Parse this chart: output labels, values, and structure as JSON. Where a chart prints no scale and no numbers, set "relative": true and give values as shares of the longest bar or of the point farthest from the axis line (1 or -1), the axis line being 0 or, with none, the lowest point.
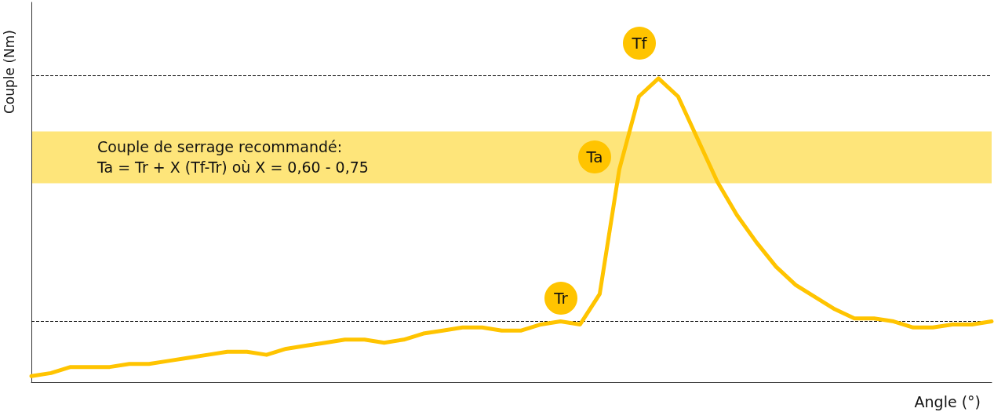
{
  "chart_data": {
    "type": "line",
    "relative": true,
    "xlabel": "Angle (°)",
    "ylabel": "Couple (Nm)",
    "categories": [
      null,
      null,
      null,
      null,
      null,
      null,
      null,
      null,
      null,
      null,
      null,
      null,
      null,
      null,
      null,
      null,
      null,
      null,
      null,
      null,
      null,
      null,
      null,
      null,
      null,
      null,
      null,
      null,
      null,
      null,
      null,
      null,
      null,
      null,
      null,
      null,
      null,
      null,
      null,
      null,
      null,
      null,
      null,
      null,
      null,
      null,
      null,
      null,
      null,
      null
    ],
    "series": [
      {
        "color": "#ffc400",
        "values": [
          0.02,
          0.03,
          0.05,
          0.05,
          0.05,
          0.06,
          0.06,
          0.07,
          0.08,
          0.09,
          0.1,
          0.1,
          0.09,
          0.11,
          0.12,
          0.13,
          0.14,
          0.14,
          0.13,
          0.14,
          0.16,
          0.17,
          0.18,
          0.18,
          0.17,
          0.17,
          0.19,
          0.2,
          0.19,
          0.29,
          0.7,
          0.94,
          1.0,
          0.94,
          0.8,
          0.66,
          0.55,
          0.46,
          0.38,
          0.32,
          0.28,
          0.24,
          0.21,
          0.21,
          0.2,
          0.18,
          0.18,
          0.19,
          0.19,
          0.2
        ]
      }
    ],
    "ref_lines": [
      {
        "axis": "y",
        "value": 0.2,
        "color": "#000000",
        "line_style": "dashed"
      },
      {
        "axis": "y",
        "value": 1.01,
        "color": "#000000",
        "line_style": "dashed"
      }
    ],
    "bands": [
      {
        "axis": "y",
        "from": 0.655,
        "to": 0.825,
        "color": "#fee57a",
        "label": "Couple de serrage recommandé:\nTa = Tr + X (Tf-Tr) où X = 0,60 - 0,75"
      }
    ],
    "annotations": [
      "Tr",
      "Tf",
      "Ta"
    ],
    "grid": false,
    "marker": "none",
    "line_style": "solid"
  }
}
